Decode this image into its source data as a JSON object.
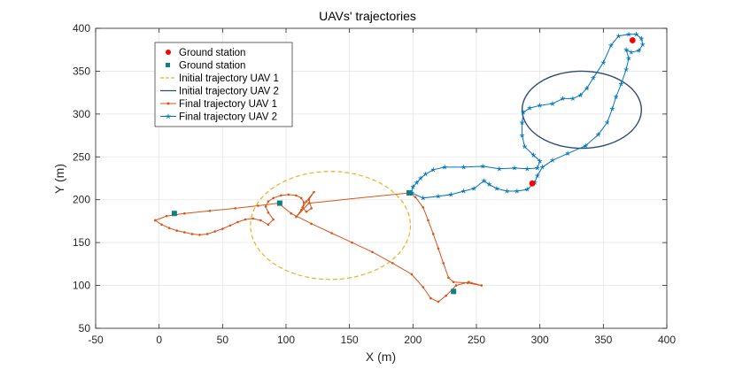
{
  "chart_data": {
    "type": "line",
    "title": "UAVs' trajectories",
    "xlabel": "X (m)",
    "ylabel": "Y (m)",
    "xlim": [
      -50,
      400
    ],
    "ylim": [
      50,
      400
    ],
    "xticks": [
      -50,
      0,
      50,
      100,
      150,
      200,
      250,
      300,
      350,
      400
    ],
    "yticks": [
      50,
      100,
      150,
      200,
      250,
      300,
      350,
      400
    ],
    "grid": true,
    "legend_position": "top-left",
    "colors": {
      "ground_station_red": "#ff0000",
      "ground_station_teal": "#0d8080",
      "uav1": "#d95319",
      "uav1_initial": "#edb120",
      "uav2": "#0072bd",
      "uav2_initial": "#2b4a75"
    },
    "series": [
      {
        "name": "Ground station",
        "kind": "markers",
        "marker": "circle",
        "color": "#ff0000",
        "points": [
          [
            373,
            386
          ],
          [
            294,
            219
          ]
        ]
      },
      {
        "name": "Ground station",
        "kind": "markers",
        "marker": "square",
        "color": "#0d8080",
        "points": [
          [
            12,
            184
          ],
          [
            95,
            196
          ],
          [
            197,
            208
          ],
          [
            232,
            93
          ]
        ]
      },
      {
        "name": "Initial trajectory UAV 1",
        "kind": "ellipse",
        "style": "dashed",
        "color": "#edb120",
        "center": [
          135,
          170
        ],
        "radii": [
          63,
          63
        ]
      },
      {
        "name": "Initial trajectory UAV 2",
        "kind": "ellipse",
        "style": "solid",
        "color": "#2b4a75",
        "center": [
          333,
          305
        ],
        "radii": [
          47,
          45
        ]
      },
      {
        "name": "Final trajectory UAV 1",
        "kind": "line",
        "marker": "dot",
        "color": "#d95319",
        "points": [
          [
            -3,
            176
          ],
          [
            2,
            171
          ],
          [
            8,
            167
          ],
          [
            14,
            164
          ],
          [
            20,
            162
          ],
          [
            26,
            160
          ],
          [
            32,
            159
          ],
          [
            38,
            160
          ],
          [
            44,
            163
          ],
          [
            50,
            166
          ],
          [
            56,
            170
          ],
          [
            62,
            174
          ],
          [
            68,
            177
          ],
          [
            74,
            178
          ],
          [
            80,
            176
          ],
          [
            86,
            171
          ],
          [
            90,
            177
          ],
          [
            86,
            185
          ],
          [
            84,
            192
          ],
          [
            86,
            198
          ],
          [
            90,
            202
          ],
          [
            96,
            205
          ],
          [
            102,
            206
          ],
          [
            108,
            205
          ],
          [
            112,
            202
          ],
          [
            114,
            197
          ],
          [
            113,
            191
          ],
          [
            116,
            186
          ],
          [
            120,
            190
          ],
          [
            118,
            200
          ],
          [
            122,
            209
          ],
          [
            116,
            198
          ],
          [
            112,
            188
          ],
          [
            108,
            180
          ],
          [
            118,
            196
          ],
          [
            197,
            208
          ],
          [
            202,
            203
          ],
          [
            208,
            191
          ],
          [
            212,
            176
          ],
          [
            216,
            160
          ],
          [
            220,
            143
          ],
          [
            224,
            126
          ],
          [
            228,
            109
          ],
          [
            232,
            104
          ],
          [
            243,
            103
          ],
          [
            254,
            100
          ],
          [
            244,
            104
          ],
          [
            234,
            100
          ],
          [
            226,
            88
          ],
          [
            220,
            81
          ],
          [
            214,
            85
          ],
          [
            208,
            98
          ],
          [
            199,
            113
          ],
          [
            184,
            126
          ],
          [
            168,
            139
          ],
          [
            152,
            150
          ],
          [
            136,
            161
          ],
          [
            120,
            172
          ],
          [
            104,
            184
          ],
          [
            94,
            196
          ],
          [
            78,
            193
          ],
          [
            60,
            190
          ],
          [
            40,
            187
          ],
          [
            20,
            184
          ],
          [
            6,
            181
          ],
          [
            -3,
            176
          ]
        ]
      },
      {
        "name": "Final trajectory UAV 2",
        "kind": "line",
        "marker": "star",
        "color": "#0072bd",
        "points": [
          [
            199,
            208
          ],
          [
            200,
            215
          ],
          [
            203,
            220
          ],
          [
            206,
            225
          ],
          [
            210,
            230
          ],
          [
            216,
            235
          ],
          [
            225,
            238
          ],
          [
            240,
            238
          ],
          [
            255,
            239
          ],
          [
            268,
            236
          ],
          [
            280,
            237
          ],
          [
            290,
            236
          ],
          [
            298,
            237
          ],
          [
            300,
            245
          ],
          [
            295,
            252
          ],
          [
            288,
            262
          ],
          [
            286,
            275
          ],
          [
            286,
            290
          ],
          [
            287,
            302
          ],
          [
            292,
            307
          ],
          [
            300,
            310
          ],
          [
            310,
            312
          ],
          [
            318,
            318
          ],
          [
            326,
            318
          ],
          [
            332,
            322
          ],
          [
            337,
            330
          ],
          [
            342,
            342
          ],
          [
            350,
            360
          ],
          [
            356,
            380
          ],
          [
            362,
            391
          ],
          [
            370,
            393
          ],
          [
            376,
            393
          ],
          [
            380,
            388
          ],
          [
            381,
            381
          ],
          [
            378,
            374
          ],
          [
            372,
            372
          ],
          [
            368,
            375
          ],
          [
            370,
            365
          ],
          [
            368,
            352
          ],
          [
            364,
            335
          ],
          [
            360,
            320
          ],
          [
            357,
            306
          ],
          [
            353,
            290
          ],
          [
            346,
            276
          ],
          [
            336,
            263
          ],
          [
            322,
            254
          ],
          [
            310,
            246
          ],
          [
            302,
            238
          ],
          [
            298,
            228
          ],
          [
            296,
            220
          ],
          [
            290,
            212
          ],
          [
            282,
            210
          ],
          [
            274,
            210
          ],
          [
            266,
            213
          ],
          [
            260,
            218
          ],
          [
            256,
            222
          ],
          [
            248,
            213
          ],
          [
            240,
            210
          ],
          [
            230,
            206
          ],
          [
            220,
            204
          ],
          [
            208,
            202
          ],
          [
            199,
            208
          ]
        ]
      }
    ]
  }
}
